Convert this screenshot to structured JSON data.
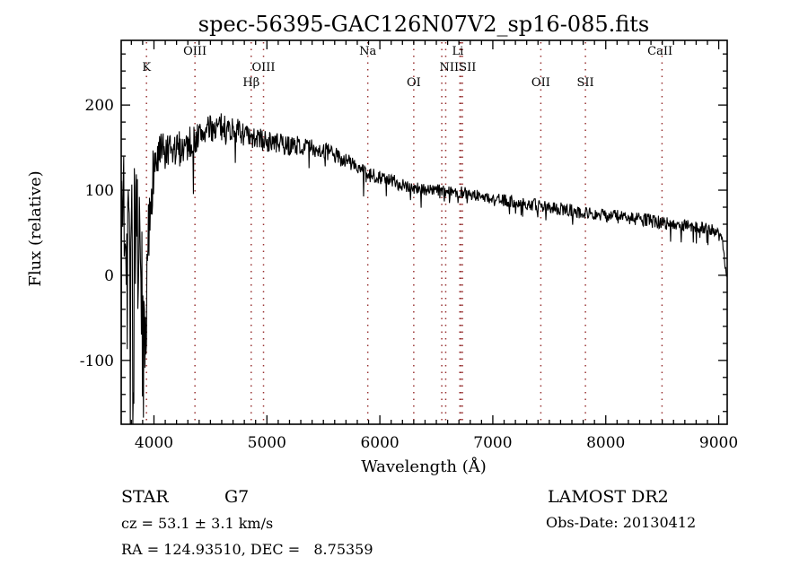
{
  "title": "spec-56395-GAC126N07V2_sp16-085.fits",
  "chart_data": {
    "type": "line",
    "title": "spec-56395-GAC126N07V2_sp16-085.fits",
    "xlabel": "Wavelength (Å)",
    "ylabel": "Flux (relative)",
    "xlim": [
      3710,
      9075
    ],
    "ylim": [
      -175,
      276
    ],
    "x_ticks": [
      4000,
      5000,
      6000,
      7000,
      8000,
      9000
    ],
    "x_minor_step": 100,
    "y_ticks": [
      -100,
      0,
      100,
      200
    ],
    "y_minor_step": 20,
    "grid": "vertical dotted marker lines only",
    "legend": "none",
    "line_color": "#000000",
    "marker_line_color": "#993333",
    "marker_lines": [
      3934,
      4363,
      4861,
      4970,
      5893,
      6300,
      6548,
      6583,
      6708,
      6717,
      6731,
      7425,
      7820,
      8498
    ],
    "marker_labels": [
      {
        "text": "K",
        "row": 2,
        "lambda": 3934
      },
      {
        "text": "OIII",
        "row": 1,
        "lambda": 4363
      },
      {
        "text": "Hβ",
        "row": 3,
        "lambda": 4861
      },
      {
        "text": "OIII",
        "row": 2,
        "lambda": 4970
      },
      {
        "text": "Na",
        "row": 1,
        "lambda": 5893
      },
      {
        "text": "OI",
        "row": 3,
        "lambda": 6300
      },
      {
        "text": "Li",
        "row": 1,
        "lambda": 6690
      },
      {
        "text": "NIISII",
        "row": 2,
        "lambda": 6690
      },
      {
        "text": "OII",
        "row": 3,
        "lambda": 7425
      },
      {
        "text": "SII",
        "row": 3,
        "lambda": 7820
      },
      {
        "text": "CaII",
        "row": 1,
        "lambda": 8480
      }
    ],
    "continuum_points": [
      [
        3710,
        60
      ],
      [
        3725,
        110
      ],
      [
        3740,
        70
      ],
      [
        3760,
        90
      ],
      [
        3780,
        50
      ],
      [
        3800,
        70
      ],
      [
        3830,
        40
      ],
      [
        3860,
        20
      ],
      [
        3890,
        -20
      ],
      [
        3915,
        -60
      ],
      [
        3934,
        -40
      ],
      [
        3950,
        30
      ],
      [
        3965,
        80
      ],
      [
        3980,
        110
      ],
      [
        4000,
        128
      ],
      [
        4050,
        140
      ],
      [
        4100,
        142
      ],
      [
        4150,
        141
      ],
      [
        4200,
        147
      ],
      [
        4250,
        151
      ],
      [
        4300,
        154
      ],
      [
        4350,
        158
      ],
      [
        4400,
        164
      ],
      [
        4450,
        169
      ],
      [
        4500,
        172
      ],
      [
        4550,
        174
      ],
      [
        4600,
        175
      ],
      [
        4650,
        173
      ],
      [
        4700,
        171
      ],
      [
        4750,
        169
      ],
      [
        4800,
        166
      ],
      [
        4861,
        157
      ],
      [
        4900,
        162
      ],
      [
        4950,
        159
      ],
      [
        5000,
        157
      ],
      [
        5050,
        156
      ],
      [
        5100,
        155
      ],
      [
        5150,
        153
      ],
      [
        5200,
        152
      ],
      [
        5250,
        153
      ],
      [
        5300,
        152
      ],
      [
        5350,
        151
      ],
      [
        5400,
        150
      ],
      [
        5450,
        148
      ],
      [
        5500,
        146
      ],
      [
        5550,
        144
      ],
      [
        5600,
        141
      ],
      [
        5650,
        138
      ],
      [
        5700,
        135
      ],
      [
        5750,
        132
      ],
      [
        5800,
        127
      ],
      [
        5850,
        122
      ],
      [
        5893,
        114
      ],
      [
        5930,
        118
      ],
      [
        6000,
        116
      ],
      [
        6050,
        113
      ],
      [
        6100,
        111
      ],
      [
        6150,
        109
      ],
      [
        6200,
        107
      ],
      [
        6250,
        105
      ],
      [
        6300,
        103
      ],
      [
        6350,
        102
      ],
      [
        6400,
        101
      ],
      [
        6500,
        100
      ],
      [
        6600,
        99
      ],
      [
        6700,
        98
      ],
      [
        6800,
        96
      ],
      [
        6900,
        92
      ],
      [
        7000,
        90
      ],
      [
        7100,
        88
      ],
      [
        7200,
        86
      ],
      [
        7300,
        84
      ],
      [
        7400,
        82
      ],
      [
        7500,
        80
      ],
      [
        7600,
        78
      ],
      [
        7700,
        76
      ],
      [
        7800,
        74
      ],
      [
        7900,
        72
      ],
      [
        8000,
        70
      ],
      [
        8100,
        69
      ],
      [
        8200,
        67
      ],
      [
        8300,
        66
      ],
      [
        8400,
        64
      ],
      [
        8500,
        62
      ],
      [
        8600,
        61
      ],
      [
        8700,
        59
      ],
      [
        8800,
        57
      ],
      [
        8900,
        55
      ],
      [
        8950,
        53
      ],
      [
        9000,
        50
      ],
      [
        9030,
        44
      ],
      [
        9050,
        18
      ],
      [
        9065,
        2
      ],
      [
        9070,
        0
      ]
    ],
    "noise_sigma_points": [
      [
        3710,
        90
      ],
      [
        3750,
        95
      ],
      [
        3800,
        100
      ],
      [
        3850,
        95
      ],
      [
        3900,
        85
      ],
      [
        3940,
        65
      ],
      [
        3960,
        45
      ],
      [
        4000,
        32
      ],
      [
        4050,
        28
      ],
      [
        4100,
        25
      ],
      [
        4200,
        22
      ],
      [
        4300,
        20
      ],
      [
        4400,
        18
      ],
      [
        4500,
        16
      ],
      [
        4700,
        15
      ],
      [
        5000,
        13
      ],
      [
        5300,
        11
      ],
      [
        5600,
        10
      ],
      [
        5900,
        9
      ],
      [
        6200,
        8
      ],
      [
        6500,
        7
      ],
      [
        7000,
        7
      ],
      [
        7500,
        7.5
      ],
      [
        8000,
        8
      ],
      [
        8500,
        8
      ],
      [
        8900,
        7
      ],
      [
        9070,
        5
      ]
    ],
    "noise_seed": 7,
    "samples": 1200,
    "spike_probability": 0.05,
    "blue_spike_probability": 0.3,
    "blue_limit": 3960
  },
  "annotations": {
    "class_label": "STAR",
    "subclass_label": "G7",
    "cz_line": "cz = 53.1 ± 3.1 km/s",
    "radec_line": "RA = 124.93510, DEC =   8.75359",
    "survey": "LAMOST DR2",
    "obs_date": "Obs-Date: 20130412"
  }
}
